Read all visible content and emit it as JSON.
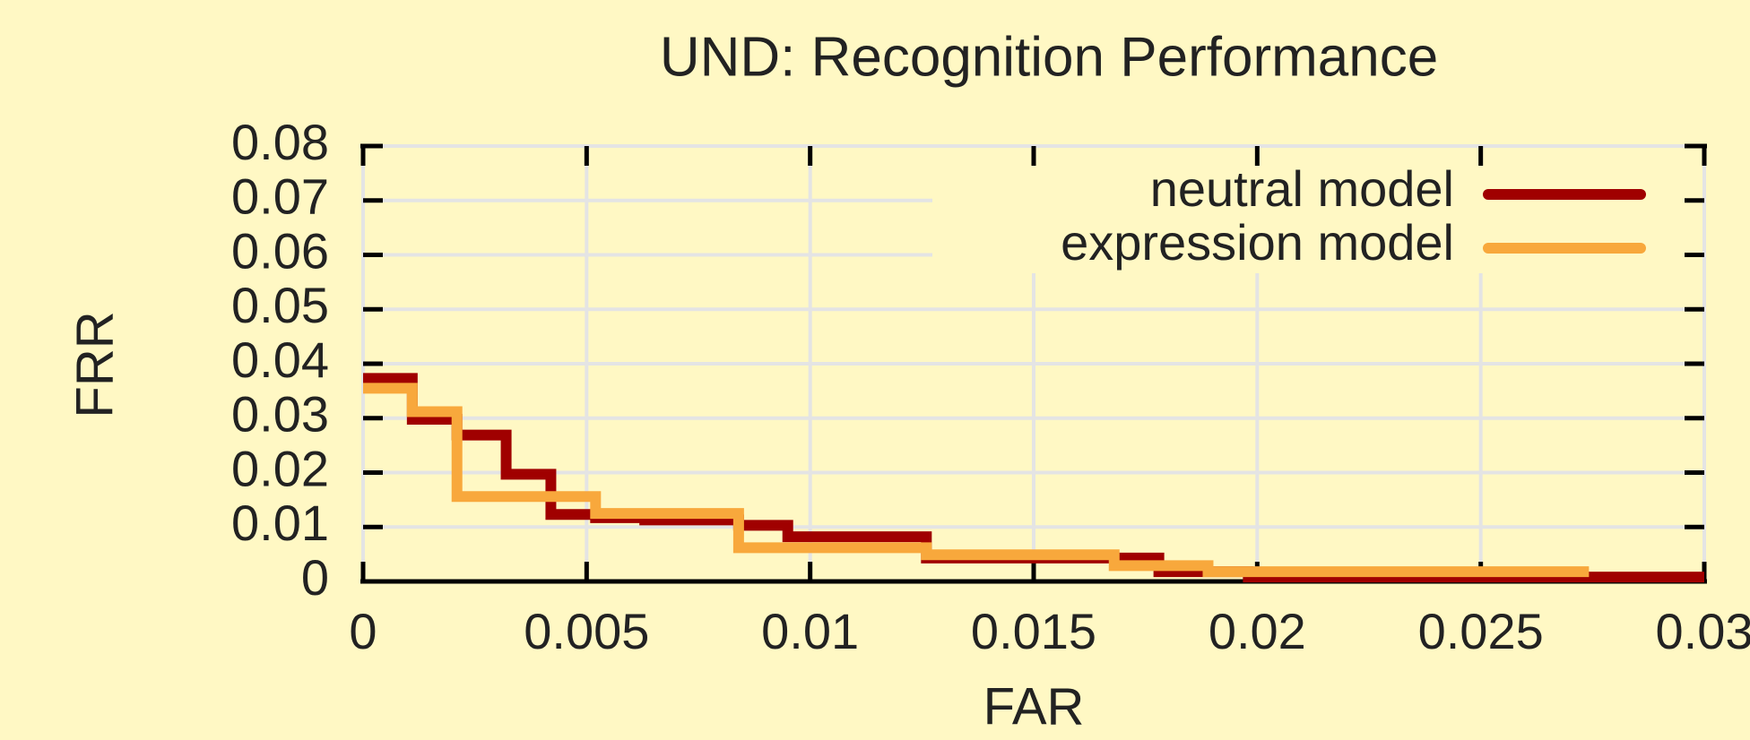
{
  "chart_data": {
    "type": "line",
    "drawstyle": "steps-post",
    "title": "UND: Recognition Performance",
    "x_label": "FAR",
    "y_label": "FRR",
    "xlim": [
      0,
      0.03
    ],
    "ylim": [
      0,
      0.08
    ],
    "xticks": [
      0,
      0.005,
      0.01,
      0.015,
      0.02,
      0.025,
      0.03
    ],
    "yticks": [
      0,
      0.01,
      0.02,
      0.03,
      0.04,
      0.05,
      0.06,
      0.07,
      0.08
    ],
    "grid": true,
    "legend": "upper right",
    "series": [
      {
        "name": "neutral model",
        "color": "#a00000",
        "x": [
          0,
          0.0011,
          0.0021,
          0.0032,
          0.0042,
          0.0052,
          0.0063,
          0.0084,
          0.0095,
          0.0126,
          0.0178,
          0.0198,
          0.03
        ],
        "values": [
          0.0373,
          0.0298,
          0.0269,
          0.0197,
          0.0123,
          0.0117,
          0.0113,
          0.0103,
          0.0082,
          0.0043,
          0.0018,
          0.0008,
          0.0008
        ]
      },
      {
        "name": "expression model",
        "color": "#f8a83c",
        "x": [
          0,
          0.0011,
          0.0021,
          0.0052,
          0.0084,
          0.0126,
          0.0168,
          0.0189,
          0.0273
        ],
        "values": [
          0.0355,
          0.0312,
          0.0156,
          0.0125,
          0.0062,
          0.0049,
          0.0029,
          0.0018,
          0.0008
        ]
      }
    ]
  }
}
